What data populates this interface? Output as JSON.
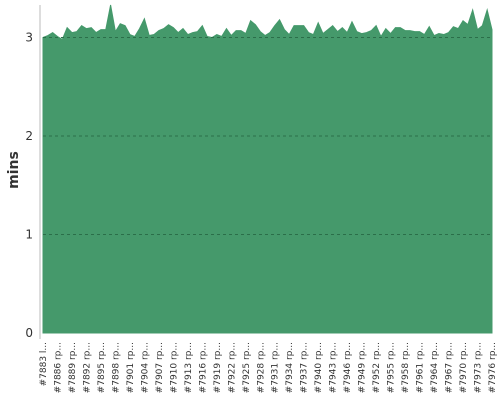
{
  "chart_data": {
    "type": "area",
    "y_label": "mins",
    "color": "#45996b",
    "categories": [
      "#7883 l...",
      null,
      null,
      "#7886 rp...",
      null,
      null,
      "#7889 rp...",
      null,
      null,
      "#7892 rp...",
      null,
      null,
      "#7895 rp...",
      null,
      null,
      "#7898 rp...",
      null,
      null,
      "#7901 rp...",
      null,
      null,
      "#7904 rp...",
      null,
      null,
      "#7907 rp...",
      null,
      null,
      "#7910 rp...",
      null,
      null,
      "#7913 rp...",
      null,
      null,
      "#7916 rp...",
      null,
      null,
      "#7919 rp...",
      null,
      null,
      "#7922 rp...",
      null,
      null,
      "#7925 rp...",
      null,
      null,
      "#7928 rp...",
      null,
      null,
      "#7931 rp...",
      null,
      null,
      "#7934 rp...",
      null,
      null,
      "#7937 rp...",
      null,
      null,
      "#7940 rp...",
      null,
      null,
      "#7943 rp...",
      null,
      null,
      "#7946 rp...",
      null,
      null,
      "#7949 rp...",
      null,
      null,
      "#7952 rp...",
      null,
      null,
      "#7955 rp...",
      null,
      null,
      "#7958 rp...",
      null,
      null,
      "#7961 rp...",
      null,
      null,
      "#7964 rp...",
      null,
      null,
      "#7967 rp...",
      null,
      null,
      "#7970 rp...",
      null,
      null,
      "#7973 rp...",
      null,
      null,
      "#7976 rp..."
    ],
    "values": [
      3.0,
      3.02,
      3.05,
      3.01,
      2.98,
      3.1,
      3.05,
      3.06,
      3.12,
      3.09,
      3.1,
      3.05,
      3.08,
      3.08,
      3.33,
      3.06,
      3.14,
      3.12,
      3.03,
      3.01,
      3.09,
      3.19,
      3.02,
      3.03,
      3.07,
      3.09,
      3.13,
      3.1,
      3.05,
      3.09,
      3.03,
      3.05,
      3.06,
      3.12,
      3.01,
      3.0,
      3.03,
      3.01,
      3.09,
      3.02,
      3.07,
      3.07,
      3.04,
      3.17,
      3.13,
      3.06,
      3.02,
      3.05,
      3.12,
      3.18,
      3.08,
      3.03,
      3.12,
      3.12,
      3.12,
      3.05,
      3.03,
      3.15,
      3.04,
      3.08,
      3.12,
      3.06,
      3.1,
      3.05,
      3.16,
      3.06,
      3.04,
      3.05,
      3.07,
      3.12,
      3.01,
      3.09,
      3.04,
      3.1,
      3.1,
      3.07,
      3.07,
      3.06,
      3.06,
      3.03,
      3.11,
      3.02,
      3.04,
      3.03,
      3.05,
      3.11,
      3.09,
      3.17,
      3.13,
      3.28,
      3.08,
      3.12,
      3.28,
      3.08
    ],
    "ylim": [
      0,
      3.33
    ],
    "yticks": [
      0,
      1,
      2,
      3
    ],
    "grid": true
  }
}
